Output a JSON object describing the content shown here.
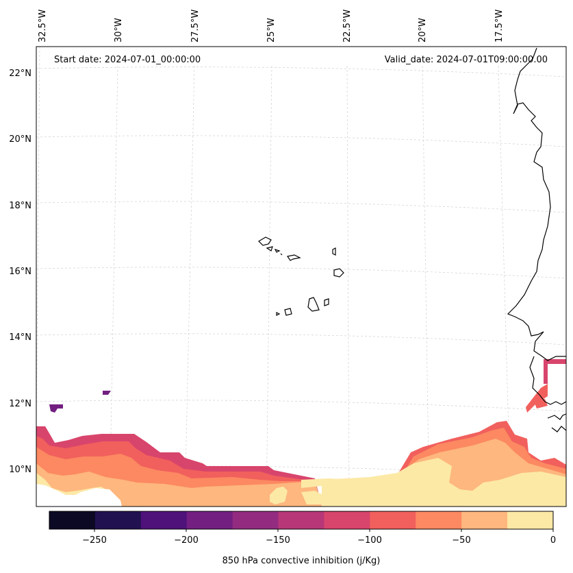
{
  "header": {
    "start_date": "Start date: 2024-07-01_00:00:00",
    "valid_date": "Valid_date: 2024-07-01T09:00:00.00"
  },
  "axes": {
    "lon_labels": [
      "32.5°W",
      "30°W",
      "27.5°W",
      "25°W",
      "22.5°W",
      "20°W",
      "17.5°W"
    ],
    "lat_labels": [
      "22°N",
      "20°N",
      "18°N",
      "16°N",
      "14°N",
      "12°N",
      "10°N"
    ],
    "gridlines": true
  },
  "colorbar": {
    "label": "850 hPa convective inhibition (j/Kg)",
    "tick_labels": [
      "−250",
      "−200",
      "−150",
      "−100",
      "−50",
      "0"
    ],
    "range": [
      -275,
      0
    ],
    "bins": [
      {
        "min": -275,
        "max": -250,
        "color": "#0b0924"
      },
      {
        "min": -250,
        "max": -225,
        "color": "#221150"
      },
      {
        "min": -225,
        "max": -200,
        "color": "#4f127b"
      },
      {
        "min": -200,
        "max": -175,
        "color": "#721f81"
      },
      {
        "min": -175,
        "max": -150,
        "color": "#932b80"
      },
      {
        "min": -150,
        "max": -125,
        "color": "#b73779"
      },
      {
        "min": -125,
        "max": -100,
        "color": "#d8456c"
      },
      {
        "min": -100,
        "max": -75,
        "color": "#f1605d"
      },
      {
        "min": -75,
        "max": -50,
        "color": "#fc8961"
      },
      {
        "min": -50,
        "max": -25,
        "color": "#feb77e"
      },
      {
        "min": -25,
        "max": 0,
        "color": "#fce9a6"
      }
    ]
  }
}
